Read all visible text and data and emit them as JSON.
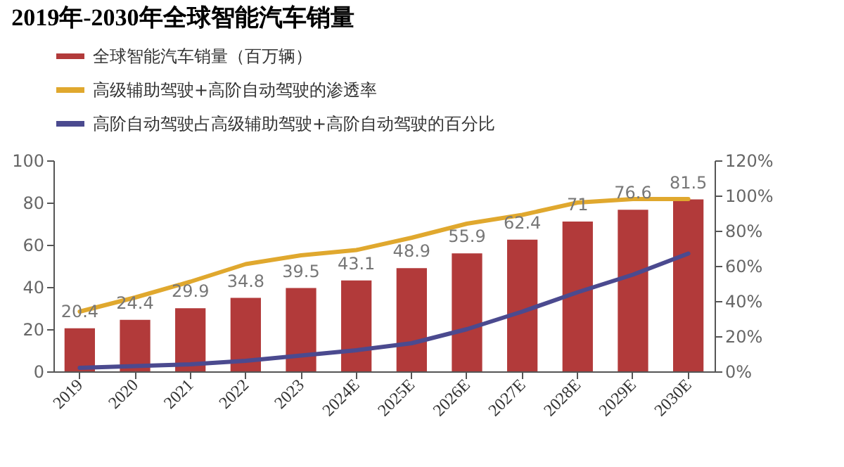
{
  "chart_data": {
    "type": "bar",
    "title": "2019年-2030年全球智能汽车销量",
    "categories": [
      "2019",
      "2020",
      "2021",
      "2022",
      "2023",
      "2024E",
      "2025E",
      "2026E",
      "2027E",
      "2028E",
      "2029E",
      "2030E"
    ],
    "series": [
      {
        "name": "全球智能汽车销量（百万辆）",
        "color": "#b23a3a",
        "values": [
          20.4,
          24.4,
          29.9,
          34.8,
          39.5,
          43.1,
          48.9,
          55.9,
          62.4,
          71,
          76.6,
          81.5
        ],
        "value_labels": [
          "20.4",
          "24.4",
          "29.9",
          "34.8",
          "39.5",
          "43.1",
          "48.9",
          "55.9",
          "62.4",
          "71",
          "76.6",
          "81.5"
        ]
      },
      {
        "name": "高级辅助驾驶+高阶自动驾驶的渗透率",
        "type": "line",
        "axis": "y2",
        "color": "#e0a82e",
        "values": [
          34,
          42,
          51,
          61,
          66,
          69,
          76,
          84,
          89,
          96,
          98,
          98
        ]
      },
      {
        "name": "高阶自动驾驶占高级辅助驾驶+高阶自动驾驶的百分比",
        "type": "line",
        "axis": "y2",
        "color": "#4b4a8f",
        "values": [
          2,
          3,
          4,
          6,
          9,
          12,
          16,
          24,
          34,
          45,
          55,
          67
        ]
      }
    ],
    "ylim": [
      0,
      100
    ],
    "yticks": [
      0,
      20,
      40,
      60,
      80,
      100
    ],
    "y2lim": [
      0,
      120
    ],
    "y2ticks": [
      {
        "value": 0,
        "label": "0%"
      },
      {
        "value": 20,
        "label": "20%"
      },
      {
        "value": 40,
        "label": "40%"
      },
      {
        "value": 60,
        "label": "60%"
      },
      {
        "value": 80,
        "label": "80%"
      },
      {
        "value": 100,
        "label": "100%"
      },
      {
        "value": 120,
        "label": "120%"
      }
    ],
    "legend": "top",
    "grid": false
  }
}
